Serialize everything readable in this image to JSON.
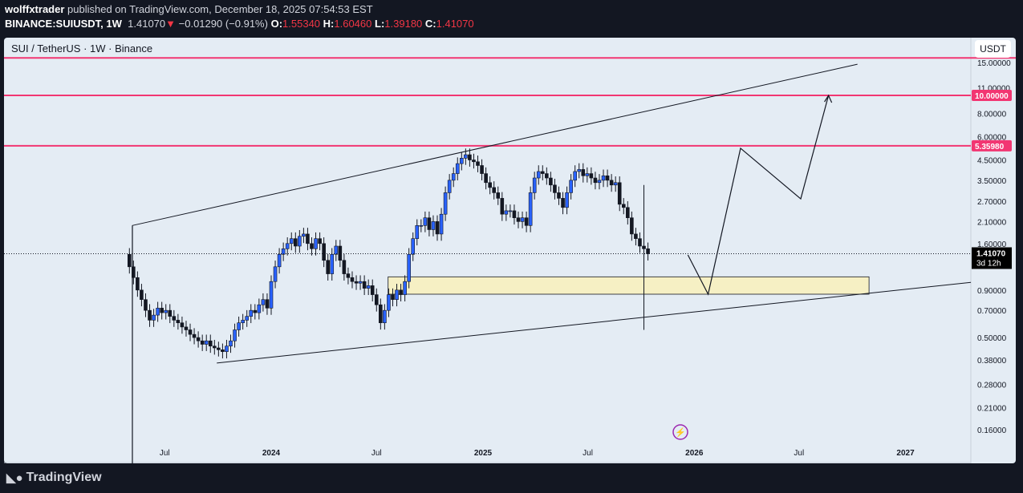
{
  "header": {
    "author": "wolffxtrader",
    "published": "published on TradingView.com, December 18, 2025 07:54:53 EST",
    "symbol": "BINANCE:SUIUSDT, 1W",
    "last": "1.41070",
    "change": "−0.01290 (−0.91%)",
    "open_label": "O:",
    "open": "1.55340",
    "high_label": "H:",
    "high": "1.60460",
    "low_label": "L:",
    "low": "1.39180",
    "close_label": "C:",
    "close": "1.41070"
  },
  "chart_title": "SUI / TetherUS · 1W · Binance",
  "currency": "USDT",
  "footer": {
    "brand": "TradingView"
  },
  "colors": {
    "up": "#2962ff",
    "down": "#131722",
    "level": "#f23672",
    "zone": "#f6f0c4",
    "background": "#e4ecf4"
  },
  "chart_data": {
    "type": "candlestick",
    "y_scale": "log",
    "ylim": [
      0.135,
      16.5
    ],
    "xlim": [
      "2023-04-12",
      "2027-04-24"
    ],
    "grid": false,
    "start_week": "2023-05-01",
    "closes": [
      1.2,
      1.05,
      0.9,
      0.8,
      0.7,
      0.62,
      0.66,
      0.72,
      0.68,
      0.7,
      0.65,
      0.62,
      0.6,
      0.57,
      0.55,
      0.52,
      0.5,
      0.48,
      0.46,
      0.48,
      0.45,
      0.44,
      0.43,
      0.42,
      0.45,
      0.48,
      0.55,
      0.6,
      0.62,
      0.65,
      0.7,
      0.68,
      0.75,
      0.8,
      0.72,
      1.0,
      1.2,
      1.4,
      1.5,
      1.6,
      1.7,
      1.55,
      1.75,
      1.8,
      1.6,
      1.5,
      1.7,
      1.6,
      1.3,
      1.1,
      1.4,
      1.55,
      1.3,
      1.1,
      1.05,
      1.0,
      0.98,
      1.0,
      0.92,
      0.95,
      0.85,
      0.75,
      0.6,
      0.7,
      0.85,
      0.8,
      0.9,
      0.85,
      1.0,
      1.4,
      1.7,
      2.0,
      2.0,
      2.2,
      1.9,
      2.1,
      1.8,
      2.3,
      3.0,
      3.5,
      3.8,
      4.3,
      4.6,
      4.8,
      4.5,
      4.4,
      4.2,
      3.8,
      3.4,
      3.2,
      3.0,
      2.8,
      2.3,
      2.4,
      2.4,
      2.2,
      2.1,
      2.2,
      2.0,
      3.0,
      3.6,
      3.9,
      3.8,
      3.6,
      3.3,
      3.0,
      2.8,
      2.5,
      3.0,
      3.5,
      3.9,
      4.0,
      3.7,
      3.8,
      3.6,
      3.4,
      3.5,
      3.7,
      3.5,
      3.3,
      3.4,
      2.6,
      2.5,
      2.2,
      1.8,
      1.7,
      1.55,
      1.5,
      1.41
    ],
    "first_open": 1.4,
    "first_low": 0.1,
    "crash_wick": {
      "date": "2025-10-06",
      "low": 0.55
    },
    "y_ticks": [
      "15.00000",
      "11.00000",
      "8.00000",
      "6.00000",
      "4.50000",
      "3.50000",
      "2.70000",
      "2.10000",
      "1.60000",
      "0.90000",
      "0.70000",
      "0.50000",
      "0.38000",
      "0.28000",
      "0.21000",
      "0.16000"
    ],
    "x_ticks": [
      {
        "date": "2023-07-01",
        "label": "Jul"
      },
      {
        "date": "2024-01-01",
        "label": "2024"
      },
      {
        "date": "2024-07-01",
        "label": "Jul"
      },
      {
        "date": "2025-01-01",
        "label": "2025"
      },
      {
        "date": "2025-07-01",
        "label": "Jul"
      },
      {
        "date": "2026-01-01",
        "label": "2026"
      },
      {
        "date": "2026-07-01",
        "label": "Jul"
      },
      {
        "date": "2027-01-01",
        "label": "2027"
      }
    ],
    "horizontal_levels": [
      {
        "price": 15.9
      },
      {
        "price": 10.0,
        "label": "10.00000"
      },
      {
        "price": 5.3598,
        "label": "5.35980"
      }
    ],
    "last_price": {
      "price": 1.4107,
      "label": "1.41070",
      "countdown": "3d 12h"
    },
    "trendlines": [
      {
        "from": {
          "date": "2023-05-06",
          "price": 2.0
        },
        "to": {
          "date": "2026-10-10",
          "price": 14.7
        }
      },
      {
        "from": {
          "date": "2023-09-29",
          "price": 0.365
        },
        "to": {
          "date": "2027-04-24",
          "price": 0.99
        }
      }
    ],
    "zone": {
      "from": "2024-07-21",
      "to": "2026-10-30",
      "top": 1.06,
      "bottom": 0.855
    },
    "projection": [
      {
        "date": "2025-12-21",
        "price": 1.39
      },
      {
        "date": "2026-01-25",
        "price": 0.855
      },
      {
        "date": "2026-03-22",
        "price": 5.2
      },
      {
        "date": "2026-07-04",
        "price": 2.78
      },
      {
        "date": "2026-08-21",
        "price": 10.0
      }
    ]
  }
}
